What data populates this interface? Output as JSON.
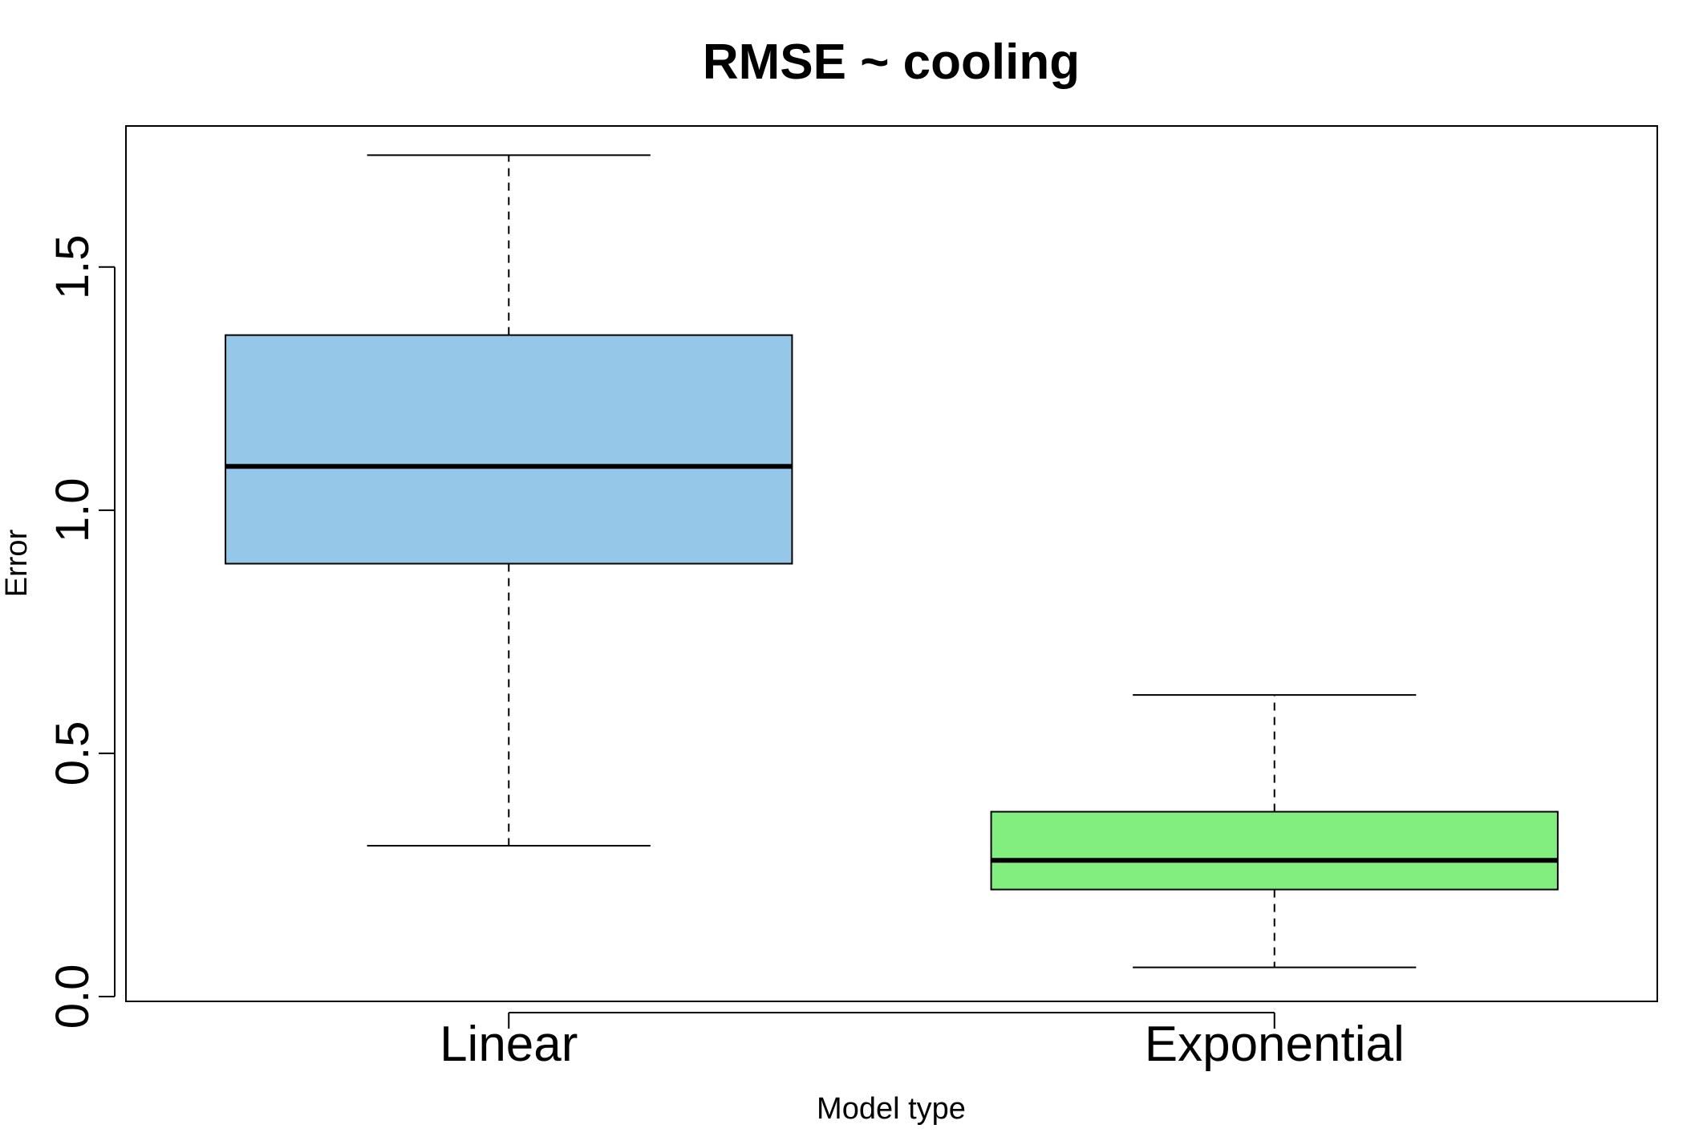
{
  "chart_data": {
    "type": "boxplot",
    "title": "RMSE ~ cooling",
    "xlabel": "Model type",
    "ylabel": "Error",
    "categories": [
      "Linear",
      "Exponential"
    ],
    "yticks": [
      "0.0",
      "0.5",
      "1.0",
      "1.5"
    ],
    "ylim": [
      -0.01,
      1.79
    ],
    "grid": false,
    "series": [
      {
        "category": "Linear",
        "whisker_low": 0.31,
        "q1": 0.89,
        "median": 1.09,
        "q3": 1.36,
        "whisker_high": 1.73,
        "color": "#95C8E8"
      },
      {
        "category": "Exponential",
        "whisker_low": 0.06,
        "q1": 0.22,
        "median": 0.28,
        "q3": 0.38,
        "whisker_high": 0.62,
        "color": "#82EE80"
      }
    ]
  }
}
